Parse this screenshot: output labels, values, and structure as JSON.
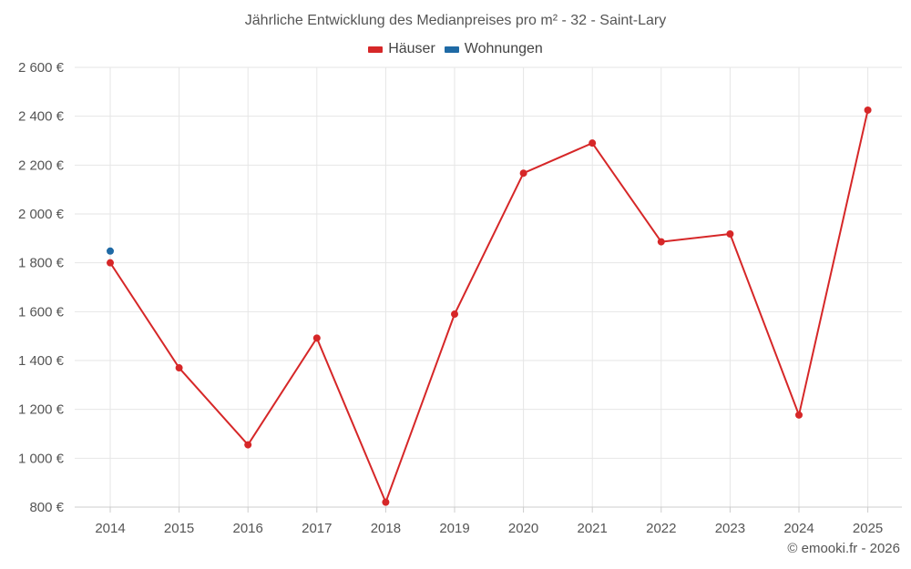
{
  "chart_data": {
    "type": "line",
    "title": "Jährliche Entwicklung des Medianpreises pro m² - 32 - Saint-Lary",
    "xlabel": "",
    "ylabel": "",
    "categories": [
      "2014",
      "2015",
      "2016",
      "2017",
      "2018",
      "2019",
      "2020",
      "2021",
      "2022",
      "2023",
      "2024",
      "2025"
    ],
    "ylim": [
      800,
      2600
    ],
    "yticks": [
      800,
      1000,
      1200,
      1400,
      1600,
      1800,
      2000,
      2200,
      2400,
      2600
    ],
    "ytick_labels": [
      "800 €",
      "1 000 €",
      "1 200 €",
      "1 400 €",
      "1 600 €",
      "1 800 €",
      "2 000 €",
      "2 200 €",
      "2 400 €",
      "2 600 €"
    ],
    "grid": true,
    "legend_position": "top-center",
    "series": [
      {
        "name": "Häuser",
        "color": "#d62728",
        "values": [
          1800,
          1370,
          1055,
          1492,
          820,
          1590,
          2167,
          2290,
          1886,
          1918,
          1177,
          2425
        ]
      },
      {
        "name": "Wohnungen",
        "color": "#1f6aa5",
        "values": [
          1848,
          null,
          null,
          null,
          null,
          null,
          null,
          null,
          null,
          null,
          null,
          null
        ]
      }
    ]
  },
  "credit": "© emooki.fr - 2026"
}
